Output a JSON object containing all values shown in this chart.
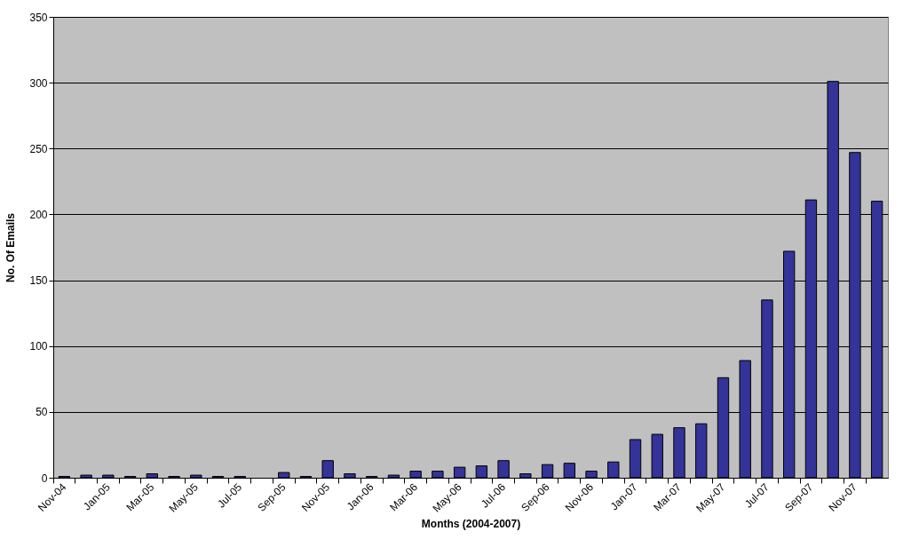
{
  "chart_data": {
    "type": "bar",
    "xlabel": "Months (2004-2007)",
    "ylabel": "No. Of Emails",
    "categories": [
      "Nov-04",
      null,
      "Jan-05",
      null,
      "Mar-05",
      null,
      "May-05",
      null,
      "Jul-05",
      null,
      "Sep-05",
      null,
      "Nov-05",
      null,
      "Jan-06",
      null,
      "Mar-06",
      null,
      "May-06",
      null,
      "Jul-06",
      null,
      "Sep-06",
      null,
      "Nov-06",
      null,
      "Jan-07",
      null,
      "Mar-07",
      null,
      "May-07",
      null,
      "Jul-07",
      null,
      "Sep-07",
      null,
      "Nov-07",
      null
    ],
    "values": [
      1,
      2,
      2,
      1,
      3,
      1,
      2,
      1,
      1,
      0,
      4,
      1,
      13,
      3,
      1,
      2,
      5,
      5,
      8,
      9,
      13,
      3,
      10,
      11,
      5,
      12,
      29,
      33,
      38,
      41,
      76,
      89,
      135,
      172,
      211,
      301,
      247,
      210
    ],
    "color": "#333399",
    "ylim": [
      0,
      350
    ],
    "yticks": [
      0,
      50,
      100,
      150,
      200,
      250,
      300,
      350
    ],
    "grid": "y"
  }
}
